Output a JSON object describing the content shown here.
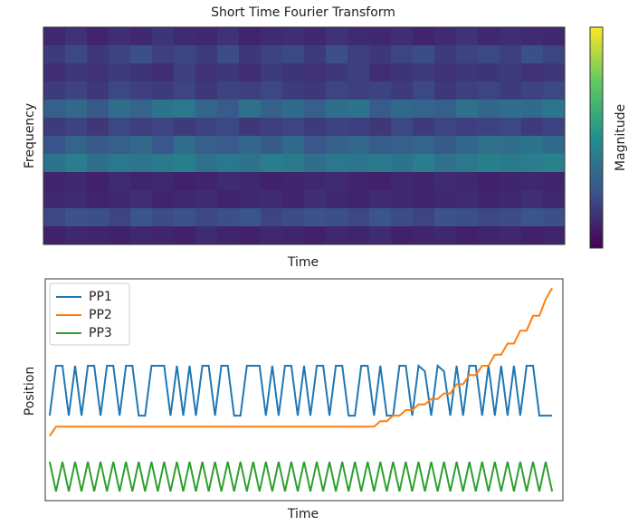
{
  "chart_data": [
    {
      "type": "heatmap",
      "title": "Short Time Fourier Transform",
      "xlabel": "Time",
      "ylabel": "Frequency",
      "colorbar_label": "Magnitude",
      "clim": [
        0,
        1
      ],
      "colormap": [
        "#440154",
        "#3b528b",
        "#21918c",
        "#5ec962",
        "#fde725"
      ],
      "z": [
        [
          0.12,
          0.15,
          0.11,
          0.14,
          0.12,
          0.16,
          0.13,
          0.12,
          0.15,
          0.11,
          0.13,
          0.14,
          0.12,
          0.15,
          0.13,
          0.12,
          0.14,
          0.11,
          0.13,
          0.15,
          0.12,
          0.14,
          0.13,
          0.12
        ],
        [
          0.18,
          0.22,
          0.17,
          0.2,
          0.24,
          0.19,
          0.21,
          0.18,
          0.23,
          0.17,
          0.2,
          0.22,
          0.18,
          0.24,
          0.19,
          0.17,
          0.21,
          0.23,
          0.18,
          0.2,
          0.22,
          0.19,
          0.24,
          0.21
        ],
        [
          0.14,
          0.17,
          0.15,
          0.18,
          0.16,
          0.14,
          0.19,
          0.15,
          0.17,
          0.14,
          0.18,
          0.16,
          0.15,
          0.17,
          0.19,
          0.14,
          0.16,
          0.18,
          0.15,
          0.17,
          0.16,
          0.18,
          0.15,
          0.17
        ],
        [
          0.18,
          0.2,
          0.17,
          0.22,
          0.19,
          0.18,
          0.21,
          0.17,
          0.2,
          0.19,
          0.22,
          0.18,
          0.17,
          0.21,
          0.19,
          0.2,
          0.18,
          0.22,
          0.17,
          0.19,
          0.21,
          0.18,
          0.2,
          0.22
        ],
        [
          0.3,
          0.34,
          0.28,
          0.36,
          0.32,
          0.38,
          0.4,
          0.33,
          0.29,
          0.37,
          0.31,
          0.35,
          0.3,
          0.36,
          0.38,
          0.29,
          0.34,
          0.32,
          0.3,
          0.37,
          0.33,
          0.36,
          0.35,
          0.39
        ],
        [
          0.18,
          0.2,
          0.17,
          0.22,
          0.19,
          0.21,
          0.18,
          0.2,
          0.22,
          0.17,
          0.19,
          0.21,
          0.18,
          0.2,
          0.19,
          0.17,
          0.22,
          0.18,
          0.21,
          0.19,
          0.2,
          0.22,
          0.18,
          0.2
        ],
        [
          0.26,
          0.32,
          0.28,
          0.3,
          0.34,
          0.27,
          0.36,
          0.3,
          0.29,
          0.33,
          0.28,
          0.35,
          0.27,
          0.31,
          0.34,
          0.29,
          0.3,
          0.32,
          0.28,
          0.33,
          0.37,
          0.36,
          0.38,
          0.35
        ],
        [
          0.38,
          0.42,
          0.36,
          0.4,
          0.39,
          0.41,
          0.43,
          0.37,
          0.4,
          0.38,
          0.42,
          0.41,
          0.36,
          0.4,
          0.39,
          0.41,
          0.38,
          0.42,
          0.37,
          0.4,
          0.43,
          0.41,
          0.42,
          0.44
        ],
        [
          0.11,
          0.12,
          0.1,
          0.13,
          0.11,
          0.12,
          0.1,
          0.11,
          0.13,
          0.12,
          0.1,
          0.11,
          0.12,
          0.13,
          0.11,
          0.1,
          0.12,
          0.11,
          0.13,
          0.12,
          0.1,
          0.11,
          0.12,
          0.11
        ],
        [
          0.12,
          0.13,
          0.11,
          0.12,
          0.14,
          0.11,
          0.12,
          0.13,
          0.11,
          0.12,
          0.13,
          0.11,
          0.14,
          0.12,
          0.11,
          0.13,
          0.12,
          0.11,
          0.12,
          0.13,
          0.11,
          0.12,
          0.14,
          0.12
        ],
        [
          0.22,
          0.25,
          0.24,
          0.21,
          0.26,
          0.23,
          0.25,
          0.22,
          0.24,
          0.26,
          0.21,
          0.23,
          0.25,
          0.24,
          0.22,
          0.26,
          0.23,
          0.21,
          0.25,
          0.24,
          0.22,
          0.23,
          0.26,
          0.24
        ],
        [
          0.1,
          0.12,
          0.11,
          0.1,
          0.12,
          0.11,
          0.1,
          0.13,
          0.11,
          0.1,
          0.12,
          0.11,
          0.1,
          0.12,
          0.11,
          0.13,
          0.1,
          0.11,
          0.12,
          0.1,
          0.11,
          0.12,
          0.1,
          0.11
        ]
      ]
    },
    {
      "type": "line",
      "xlabel": "Time",
      "ylabel": "Position",
      "xlim": [
        -0.7,
        80.7
      ],
      "ylim": [
        0,
        12
      ],
      "x": [
        0,
        1,
        2,
        3,
        4,
        5,
        6,
        7,
        8,
        9,
        10,
        11,
        12,
        13,
        14,
        15,
        16,
        17,
        18,
        19,
        20,
        21,
        22,
        23,
        24,
        25,
        26,
        27,
        28,
        29,
        30,
        31,
        32,
        33,
        34,
        35,
        36,
        37,
        38,
        39,
        40,
        41,
        42,
        43,
        44,
        45,
        46,
        47,
        48,
        49,
        50,
        51,
        52,
        53,
        54,
        55,
        56,
        57,
        58,
        59,
        60,
        61,
        62,
        63,
        64,
        65,
        66,
        67,
        68,
        69,
        70,
        71,
        72,
        73,
        74,
        75,
        76,
        77,
        78,
        79
      ],
      "series": [
        {
          "name": "PP1",
          "color": "#1f77b4",
          "values": [
            4.6,
            7.3,
            7.3,
            4.6,
            7.3,
            4.6,
            7.3,
            7.3,
            4.6,
            7.3,
            7.3,
            4.6,
            7.3,
            7.3,
            4.6,
            4.6,
            7.3,
            7.3,
            7.3,
            4.6,
            7.3,
            4.6,
            7.3,
            4.6,
            7.3,
            7.3,
            4.6,
            7.3,
            7.3,
            4.6,
            4.6,
            7.3,
            7.3,
            7.3,
            4.6,
            7.3,
            4.6,
            7.3,
            7.3,
            4.6,
            7.3,
            4.6,
            7.3,
            7.3,
            4.6,
            7.3,
            7.3,
            4.6,
            4.6,
            7.3,
            7.3,
            4.6,
            7.3,
            4.6,
            4.6,
            7.3,
            7.3,
            4.6,
            7.3,
            7.0,
            4.6,
            7.3,
            7.0,
            4.6,
            7.3,
            4.6,
            7.3,
            7.3,
            4.6,
            7.3,
            4.6,
            7.3,
            4.6,
            7.3,
            4.6,
            7.3,
            7.3,
            4.6,
            4.6,
            4.6
          ]
        },
        {
          "name": "PP2",
          "color": "#ff7f0e",
          "values": [
            3.5,
            4.0,
            4.0,
            4.0,
            4.0,
            4.0,
            4.0,
            4.0,
            4.0,
            4.0,
            4.0,
            4.0,
            4.0,
            4.0,
            4.0,
            4.0,
            4.0,
            4.0,
            4.0,
            4.0,
            4.0,
            4.0,
            4.0,
            4.0,
            4.0,
            4.0,
            4.0,
            4.0,
            4.0,
            4.0,
            4.0,
            4.0,
            4.0,
            4.0,
            4.0,
            4.0,
            4.0,
            4.0,
            4.0,
            4.0,
            4.0,
            4.0,
            4.0,
            4.0,
            4.0,
            4.0,
            4.0,
            4.0,
            4.0,
            4.0,
            4.0,
            4.0,
            4.3,
            4.3,
            4.6,
            4.6,
            4.9,
            4.9,
            5.2,
            5.2,
            5.5,
            5.5,
            5.8,
            5.8,
            6.3,
            6.3,
            6.8,
            6.8,
            7.3,
            7.3,
            7.9,
            7.9,
            8.5,
            8.5,
            9.2,
            9.2,
            10.0,
            10.0,
            10.9,
            11.5
          ]
        },
        {
          "name": "PP3",
          "color": "#2ca02c",
          "values": [
            2.1,
            0.5,
            2.1,
            0.5,
            2.1,
            0.5,
            2.1,
            0.5,
            2.1,
            0.5,
            2.1,
            0.5,
            2.1,
            0.5,
            2.1,
            0.5,
            2.1,
            0.5,
            2.1,
            0.5,
            2.1,
            0.5,
            2.1,
            0.5,
            2.1,
            0.5,
            2.1,
            0.5,
            2.1,
            0.5,
            2.1,
            0.5,
            2.1,
            0.5,
            2.1,
            0.5,
            2.1,
            0.5,
            2.1,
            0.5,
            2.1,
            0.5,
            2.1,
            0.5,
            2.1,
            0.5,
            2.1,
            0.5,
            2.1,
            0.5,
            2.1,
            0.5,
            2.1,
            0.5,
            2.1,
            0.5,
            2.1,
            0.5,
            2.1,
            0.5,
            2.1,
            0.5,
            2.1,
            0.5,
            2.1,
            0.5,
            2.1,
            0.5,
            2.1,
            0.5,
            2.1,
            0.5,
            2.1,
            0.5,
            2.1,
            0.5,
            2.1,
            0.5,
            2.1,
            0.5
          ]
        }
      ]
    }
  ]
}
